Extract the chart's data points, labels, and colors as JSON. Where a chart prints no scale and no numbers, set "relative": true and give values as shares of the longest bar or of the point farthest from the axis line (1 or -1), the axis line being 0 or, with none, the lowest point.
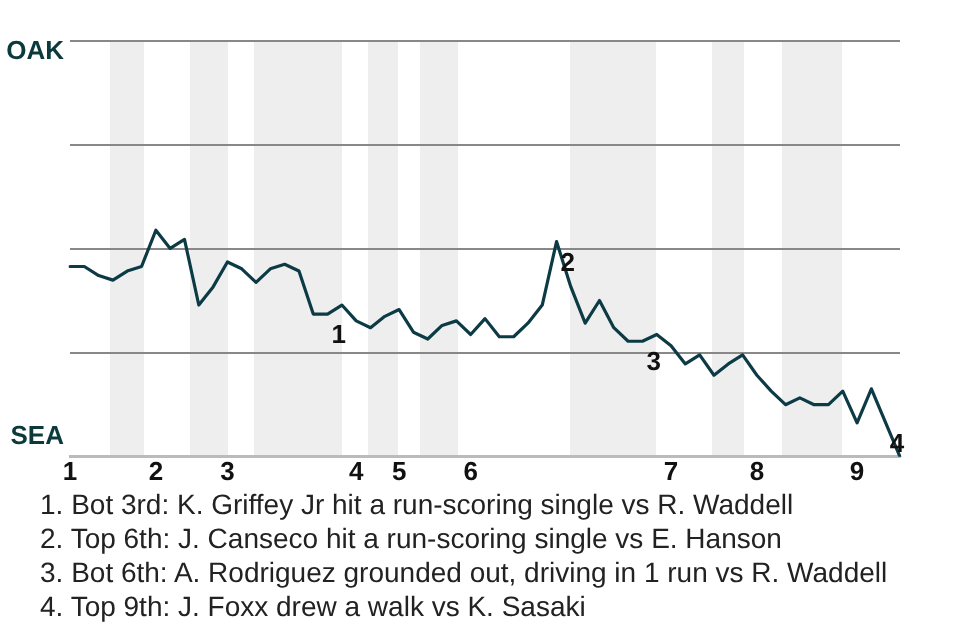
{
  "chart_data": {
    "type": "line",
    "relative": true,
    "categories": [
      "1",
      null,
      null,
      null,
      null,
      null,
      "2",
      null,
      null,
      null,
      null,
      "3",
      null,
      null,
      null,
      null,
      null,
      null,
      null,
      null,
      "4",
      null,
      null,
      "5",
      null,
      null,
      null,
      null,
      "6",
      null,
      null,
      null,
      null,
      null,
      null,
      null,
      null,
      null,
      null,
      null,
      null,
      null,
      "7",
      null,
      null,
      null,
      null,
      null,
      "8",
      null,
      null,
      null,
      null,
      null,
      null,
      "9",
      null,
      null,
      null
    ],
    "legend": false,
    "marker": "none",
    "line_style": "solid",
    "ref_lines": [
      {
        "axis": "y",
        "value": 0.46,
        "color": "#888888"
      },
      {
        "axis": "y",
        "value": 0.92,
        "color": "#888888"
      },
      {
        "axis": "y",
        "value": 1.38,
        "color": "#888888"
      },
      {
        "axis": "y",
        "value": 1.84,
        "color": "#888888"
      }
    ],
    "series": [
      {
        "color": "#0d3b45",
        "values": [
          0.84,
          0.84,
          0.8,
          0.78,
          0.82,
          0.84,
          1,
          0.92,
          0.96,
          0.67,
          0.75,
          0.86,
          0.83,
          0.77,
          0.83,
          0.85,
          0.82,
          0.63,
          0.63,
          0.67,
          0.6,
          0.57,
          0.62,
          0.65,
          0.55,
          0.52,
          0.58,
          0.6,
          0.54,
          0.61,
          0.53,
          0.53,
          0.59,
          0.67,
          0.95,
          0.75,
          0.59,
          0.69,
          0.57,
          0.51,
          0.51,
          0.54,
          0.49,
          0.41,
          0.45,
          0.36,
          0.41,
          0.45,
          0.36,
          0.29,
          0.23,
          0.26,
          0.23,
          0.23,
          0.29,
          0.15,
          0.3,
          0.15,
          0
        ]
      }
    ],
    "annotations": [
      {
        "text": "1",
        "y": 0.63
      },
      {
        "text": "2",
        "y": 0.95
      },
      {
        "text": "3",
        "y": 0.51
      },
      {
        "text": "4",
        "y": 0.15
      },
      "OAK",
      "SEA",
      "1. Bot 3rd: K. Griffey Jr hit a run-scoring single vs R. Waddell",
      "2. Top 6th: J. Canseco hit a run-scoring single vs E. Hanson",
      "3. Bot 6th: A. Rodriguez grounded out, driving in 1 run vs R. Waddell",
      "4. Top 9th: J. Foxx drew a walk vs K. Sasaki"
    ]
  }
}
